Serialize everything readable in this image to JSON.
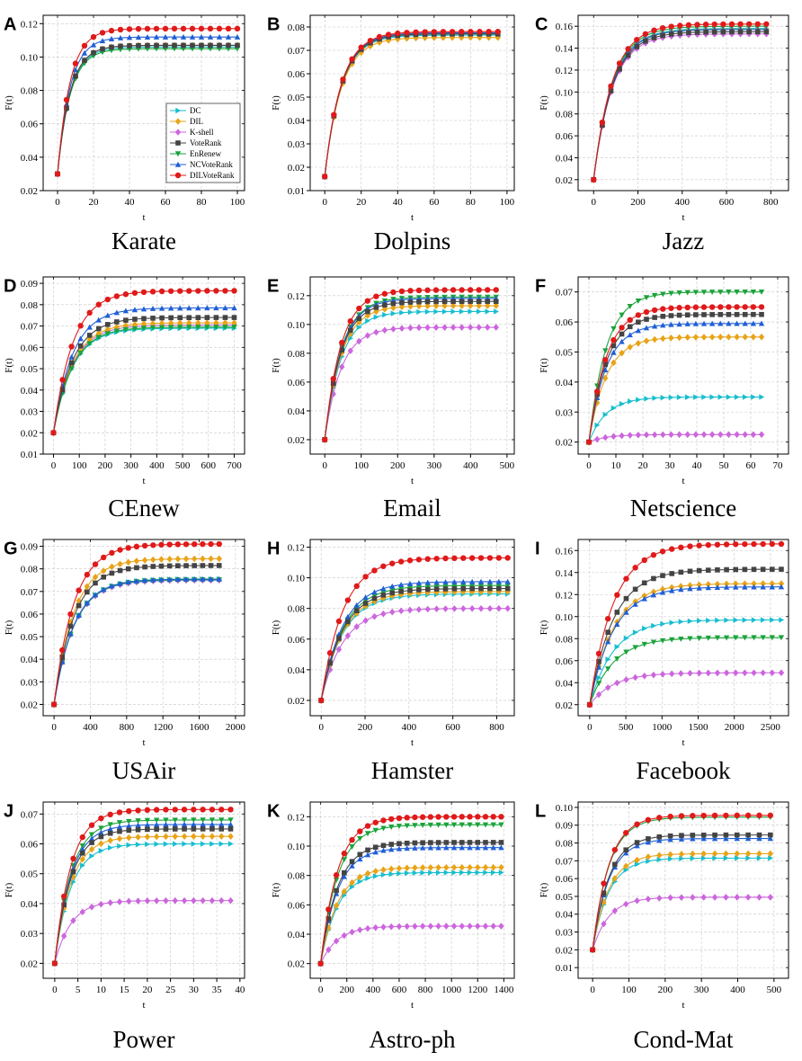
{
  "colors": {
    "DC": "#17becf",
    "DIL": "#e8a317",
    "K-shell": "#cc66dd",
    "VoteRank": "#444444",
    "EnRenew": "#1aa33a",
    "NCVoteRank": "#1f5fd6",
    "DILVoteRank": "#e01a1a"
  },
  "markers": {
    "DC": "triangle-right",
    "DIL": "diamond",
    "K-shell": "diamond",
    "VoteRank": "square",
    "EnRenew": "triangle-down",
    "NCVoteRank": "triangle-up",
    "DILVoteRank": "circle"
  },
  "chart_data": [
    {
      "type": "line",
      "letter": "A",
      "title": "Karate",
      "xlabel": "t",
      "ylabel": "F(t)",
      "xlim": [
        -8,
        104
      ],
      "ylim": [
        0.02,
        0.125
      ],
      "xticks": [
        0,
        20,
        40,
        60,
        80,
        100
      ],
      "yticks": [
        0.02,
        0.04,
        0.06,
        0.08,
        0.1,
        0.12
      ],
      "ytick_decimals": 2,
      "tmax": 100,
      "n_points": 21,
      "tau": 7,
      "y0": 0.03,
      "legend": [
        "DC",
        "DIL",
        "K-shell",
        "VoteRank",
        "EnRenew",
        "NCVoteRank",
        "DILVoteRank"
      ],
      "series": [
        {
          "name": "DC",
          "final": 0.106
        },
        {
          "name": "DIL",
          "final": 0.107
        },
        {
          "name": "K-shell",
          "final": 0.107
        },
        {
          "name": "VoteRank",
          "final": 0.107
        },
        {
          "name": "EnRenew",
          "final": 0.105
        },
        {
          "name": "NCVoteRank",
          "final": 0.112
        },
        {
          "name": "DILVoteRank",
          "final": 0.117
        }
      ]
    },
    {
      "type": "line",
      "letter": "B",
      "title": "Dolpins",
      "xlabel": "t",
      "ylabel": "F(t)",
      "xlim": [
        -8,
        104
      ],
      "ylim": [
        0.01,
        0.085
      ],
      "xticks": [
        0,
        20,
        40,
        60,
        80,
        100
      ],
      "yticks": [
        0.01,
        0.02,
        0.03,
        0.04,
        0.05,
        0.06,
        0.07,
        0.08
      ],
      "ytick_decimals": 2,
      "tmax": 95,
      "n_points": 20,
      "tau": 9,
      "y0": 0.016,
      "series": [
        {
          "name": "DC",
          "final": 0.0765
        },
        {
          "name": "DIL",
          "final": 0.0755
        },
        {
          "name": "K-shell",
          "final": 0.0775
        },
        {
          "name": "VoteRank",
          "final": 0.077
        },
        {
          "name": "EnRenew",
          "final": 0.0772
        },
        {
          "name": "NCVoteRank",
          "final": 0.0775
        },
        {
          "name": "DILVoteRank",
          "final": 0.078
        }
      ]
    },
    {
      "type": "line",
      "letter": "C",
      "title": "Jazz",
      "xlabel": "t",
      "ylabel": "F(t)",
      "xlim": [
        -70,
        880
      ],
      "ylim": [
        0.01,
        0.17
      ],
      "xticks": [
        0,
        200,
        400,
        600,
        800
      ],
      "yticks": [
        0.02,
        0.04,
        0.06,
        0.08,
        0.1,
        0.12,
        0.14,
        0.16
      ],
      "ytick_decimals": 2,
      "tmax": 780,
      "n_points": 21,
      "tau": 85,
      "y0": 0.02,
      "series": [
        {
          "name": "DC",
          "final": 0.158
        },
        {
          "name": "DIL",
          "final": 0.157
        },
        {
          "name": "K-shell",
          "final": 0.153
        },
        {
          "name": "VoteRank",
          "final": 0.155
        },
        {
          "name": "EnRenew",
          "final": 0.16
        },
        {
          "name": "NCVoteRank",
          "final": 0.157
        },
        {
          "name": "DILVoteRank",
          "final": 0.162
        }
      ]
    },
    {
      "type": "line",
      "letter": "D",
      "title": "CEnew",
      "xlabel": "t",
      "ylabel": "F(t)",
      "xlim": [
        -40,
        740
      ],
      "ylim": [
        0.01,
        0.093
      ],
      "xticks": [
        0,
        100,
        200,
        300,
        400,
        500,
        600,
        700
      ],
      "yticks": [
        0.01,
        0.02,
        0.03,
        0.04,
        0.05,
        0.06,
        0.07,
        0.08,
        0.09
      ],
      "ytick_decimals": 2,
      "tmax": 700,
      "n_points": 21,
      "tau": 75,
      "y0": 0.02,
      "series": [
        {
          "name": "DC",
          "final": 0.069
        },
        {
          "name": "DIL",
          "final": 0.0715
        },
        {
          "name": "K-shell",
          "final": 0.0705
        },
        {
          "name": "VoteRank",
          "final": 0.074
        },
        {
          "name": "EnRenew",
          "final": 0.0695
        },
        {
          "name": "NCVoteRank",
          "final": 0.0785
        },
        {
          "name": "DILVoteRank",
          "final": 0.0865
        }
      ]
    },
    {
      "type": "line",
      "letter": "E",
      "title": "Email",
      "xlabel": "t",
      "ylabel": "F(t)",
      "xlim": [
        -40,
        520
      ],
      "ylim": [
        0.01,
        0.133
      ],
      "xticks": [
        0,
        100,
        200,
        300,
        400,
        500
      ],
      "yticks": [
        0.02,
        0.04,
        0.06,
        0.08,
        0.1,
        0.12
      ],
      "ytick_decimals": 2,
      "tmax": 470,
      "n_points": 21,
      "tau": 45,
      "y0": 0.02,
      "series": [
        {
          "name": "DC",
          "final": 0.109
        },
        {
          "name": "DIL",
          "final": 0.113
        },
        {
          "name": "K-shell",
          "final": 0.098
        },
        {
          "name": "VoteRank",
          "final": 0.116
        },
        {
          "name": "EnRenew",
          "final": 0.119
        },
        {
          "name": "NCVoteRank",
          "final": 0.118
        },
        {
          "name": "DILVoteRank",
          "final": 0.124
        }
      ]
    },
    {
      "type": "line",
      "letter": "F",
      "title": "Netscience",
      "xlabel": "t",
      "ylabel": "F(t)",
      "xlim": [
        -4,
        74
      ],
      "ylim": [
        0.016,
        0.075
      ],
      "xticks": [
        0,
        10,
        20,
        30,
        40,
        50,
        60,
        70
      ],
      "yticks": [
        0.02,
        0.03,
        0.04,
        0.05,
        0.06,
        0.07
      ],
      "ytick_decimals": 2,
      "tmax": 64,
      "n_points": 22,
      "tau": 6.5,
      "y0": 0.02,
      "series": [
        {
          "name": "DC",
          "final": 0.035
        },
        {
          "name": "DIL",
          "final": 0.055
        },
        {
          "name": "K-shell",
          "final": 0.0225
        },
        {
          "name": "VoteRank",
          "final": 0.0625
        },
        {
          "name": "EnRenew",
          "final": 0.07
        },
        {
          "name": "NCVoteRank",
          "final": 0.0595
        },
        {
          "name": "DILVoteRank",
          "final": 0.065
        }
      ]
    },
    {
      "type": "line",
      "letter": "G",
      "title": "USAir",
      "xlabel": "t",
      "ylabel": "F(t)",
      "xlim": [
        -120,
        2100
      ],
      "ylim": [
        0.015,
        0.093
      ],
      "xticks": [
        0,
        400,
        800,
        1200,
        1600,
        2000
      ],
      "yticks": [
        0.02,
        0.03,
        0.04,
        0.05,
        0.06,
        0.07,
        0.08,
        0.09
      ],
      "ytick_decimals": 2,
      "tmax": 1820,
      "n_points": 21,
      "tau": 220,
      "y0": 0.02,
      "series": [
        {
          "name": "DC",
          "final": 0.0755
        },
        {
          "name": "DIL",
          "final": 0.0845
        },
        {
          "name": "K-shell",
          "final": 0.075
        },
        {
          "name": "VoteRank",
          "final": 0.0815
        },
        {
          "name": "EnRenew",
          "final": 0.0752
        },
        {
          "name": "NCVoteRank",
          "final": 0.0755
        },
        {
          "name": "DILVoteRank",
          "final": 0.091
        }
      ]
    },
    {
      "type": "line",
      "letter": "H",
      "title": "Hamster",
      "xlabel": "t",
      "ylabel": "F(t)",
      "xlim": [
        -50,
        880
      ],
      "ylim": [
        0.01,
        0.125
      ],
      "xticks": [
        0,
        200,
        400,
        600,
        800
      ],
      "yticks": [
        0.02,
        0.04,
        0.06,
        0.08,
        0.1,
        0.12
      ],
      "ytick_decimals": 2,
      "tmax": 850,
      "n_points": 22,
      "tau": 100,
      "y0": 0.02,
      "series": [
        {
          "name": "DC",
          "final": 0.0895
        },
        {
          "name": "DIL",
          "final": 0.091
        },
        {
          "name": "K-shell",
          "final": 0.08
        },
        {
          "name": "VoteRank",
          "final": 0.093
        },
        {
          "name": "EnRenew",
          "final": 0.095
        },
        {
          "name": "NCVoteRank",
          "final": 0.0975
        },
        {
          "name": "DILVoteRank",
          "final": 0.113
        }
      ]
    },
    {
      "type": "line",
      "letter": "I",
      "title": "Facebook",
      "xlabel": "t",
      "ylabel": "F(t)",
      "xlim": [
        -160,
        2750
      ],
      "ylim": [
        0.01,
        0.17
      ],
      "xticks": [
        0,
        500,
        1000,
        1500,
        2000,
        2500
      ],
      "yticks": [
        0.02,
        0.04,
        0.06,
        0.08,
        0.1,
        0.12,
        0.14,
        0.16
      ],
      "ytick_decimals": 2,
      "tmax": 2650,
      "n_points": 22,
      "tau": 330,
      "y0": 0.02,
      "series": [
        {
          "name": "DC",
          "final": 0.097
        },
        {
          "name": "DIL",
          "final": 0.13
        },
        {
          "name": "K-shell",
          "final": 0.049
        },
        {
          "name": "VoteRank",
          "final": 0.143
        },
        {
          "name": "EnRenew",
          "final": 0.081
        },
        {
          "name": "NCVoteRank",
          "final": 0.127
        },
        {
          "name": "DILVoteRank",
          "final": 0.166
        }
      ]
    },
    {
      "type": "line",
      "letter": "J",
      "title": "Power",
      "xlabel": "t",
      "ylabel": "F(t)",
      "xlim": [
        -2.5,
        41
      ],
      "ylim": [
        0.015,
        0.074
      ],
      "xticks": [
        0,
        5,
        10,
        15,
        20,
        25,
        30,
        35,
        40
      ],
      "yticks": [
        0.02,
        0.03,
        0.04,
        0.05,
        0.06,
        0.07
      ],
      "ytick_decimals": 2,
      "tmax": 38,
      "n_points": 20,
      "tau": 3.5,
      "y0": 0.02,
      "series": [
        {
          "name": "DC",
          "final": 0.06
        },
        {
          "name": "DIL",
          "final": 0.0625
        },
        {
          "name": "K-shell",
          "final": 0.041
        },
        {
          "name": "VoteRank",
          "final": 0.065
        },
        {
          "name": "EnRenew",
          "final": 0.068
        },
        {
          "name": "NCVoteRank",
          "final": 0.0665
        },
        {
          "name": "DILVoteRank",
          "final": 0.0715
        }
      ]
    },
    {
      "type": "line",
      "letter": "K",
      "title": "Astro-ph",
      "xlabel": "t",
      "ylabel": "F(t)",
      "xlim": [
        -80,
        1480
      ],
      "ylim": [
        0.01,
        0.13
      ],
      "xticks": [
        0,
        200,
        400,
        600,
        800,
        1000,
        1200,
        1400
      ],
      "yticks": [
        0.02,
        0.04,
        0.06,
        0.08,
        0.1,
        0.12
      ],
      "ytick_decimals": 2,
      "tmax": 1380,
      "n_points": 24,
      "tau": 130,
      "y0": 0.02,
      "series": [
        {
          "name": "DC",
          "final": 0.082
        },
        {
          "name": "DIL",
          "final": 0.0855
        },
        {
          "name": "K-shell",
          "final": 0.0455
        },
        {
          "name": "VoteRank",
          "final": 0.1025
        },
        {
          "name": "EnRenew",
          "final": 0.1145
        },
        {
          "name": "NCVoteRank",
          "final": 0.099
        },
        {
          "name": "DILVoteRank",
          "final": 0.12
        }
      ]
    },
    {
      "type": "line",
      "letter": "L",
      "title": "Cond-Mat",
      "xlabel": "t",
      "ylabel": "F(t)",
      "xlim": [
        -40,
        540
      ],
      "ylim": [
        0.004,
        0.103
      ],
      "xticks": [
        0,
        100,
        200,
        300,
        400,
        500
      ],
      "yticks": [
        0.01,
        0.02,
        0.03,
        0.04,
        0.05,
        0.06,
        0.07,
        0.08,
        0.09,
        0.1
      ],
      "ytick_decimals": 2,
      "tmax": 490,
      "n_points": 17,
      "tau": 45,
      "y0": 0.02,
      "series": [
        {
          "name": "DC",
          "final": 0.0715
        },
        {
          "name": "DIL",
          "final": 0.074
        },
        {
          "name": "K-shell",
          "final": 0.0495
        },
        {
          "name": "VoteRank",
          "final": 0.0845
        },
        {
          "name": "EnRenew",
          "final": 0.0945
        },
        {
          "name": "NCVoteRank",
          "final": 0.0825
        },
        {
          "name": "DILVoteRank",
          "final": 0.0955
        }
      ]
    }
  ]
}
